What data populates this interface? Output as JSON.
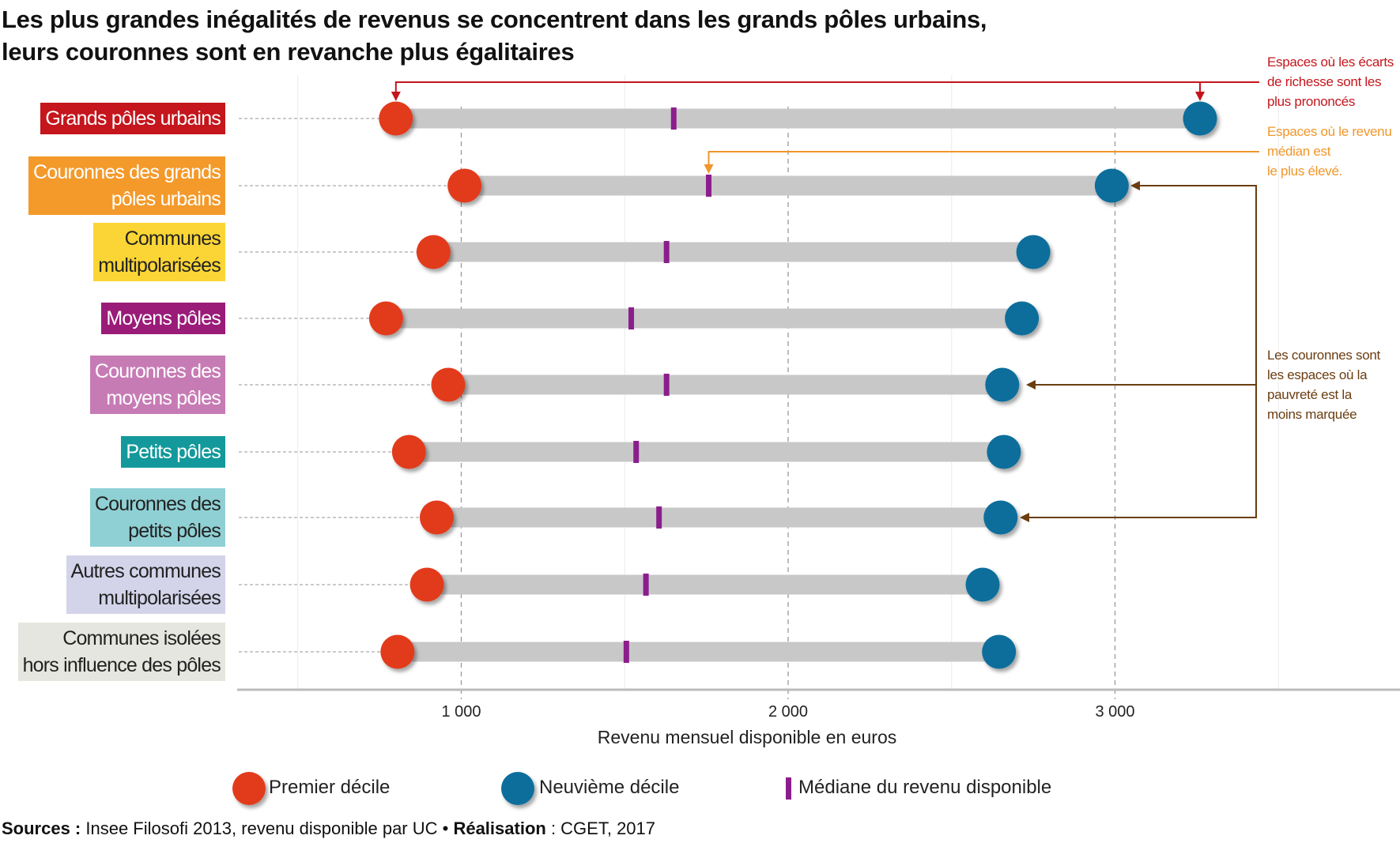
{
  "title_lines": [
    "Les plus grandes inégalités de revenus se concentrent dans les grands pôles urbains,",
    "leurs couronnes sont en revanche plus égalitaires"
  ],
  "chart_data": {
    "type": "dumbbell",
    "xlabel": "Revenu mensuel disponible en euros",
    "xlim": [
      315,
      3900
    ],
    "xticks": [
      {
        "value": 1000,
        "label": "1 000"
      },
      {
        "value": 2000,
        "label": "2 000"
      },
      {
        "value": 3000,
        "label": "3 000"
      }
    ],
    "minor_gridlines": [
      500,
      1500,
      2500,
      3500
    ],
    "grid": true,
    "legend_position": "bottom",
    "colors": {
      "d1": "#e23a1e",
      "d9": "#0b6e9c",
      "median": "#8b1e8c",
      "bar": "#c8c8c8"
    },
    "legend": {
      "d1": "Premier décile",
      "d9": "Neuvième décile",
      "median": "Médiane du revenu disponible"
    },
    "categories": [
      {
        "label": "Grands pôles urbains",
        "color": "#c4161c",
        "text": "#ffffff",
        "d1": 800,
        "median": 1650,
        "d9": 3260
      },
      {
        "label": "Couronnes des grands pôles urbains",
        "color": "#f39a2b",
        "text": "#ffffff",
        "d1": 1010,
        "median": 1757,
        "d9": 2990
      },
      {
        "label": "Communes multipolarisées",
        "color": "#fbd535",
        "text": "#222222",
        "d1": 915,
        "median": 1628,
        "d9": 2750
      },
      {
        "label": "Moyens pôles",
        "color": "#9a1b78",
        "text": "#ffffff",
        "d1": 770,
        "median": 1520,
        "d9": 2715
      },
      {
        "label": "Couronnes des moyens pôles",
        "color": "#c77bb5",
        "text": "#ffffff",
        "d1": 960,
        "median": 1628,
        "d9": 2655
      },
      {
        "label": "Petits pôles",
        "color": "#13999b",
        "text": "#ffffff",
        "d1": 840,
        "median": 1535,
        "d9": 2660
      },
      {
        "label": "Couronnes des petits pôles",
        "color": "#8fd0d4",
        "text": "#222222",
        "d1": 925,
        "median": 1605,
        "d9": 2650
      },
      {
        "label": "Autres communes multipolarisées",
        "color": "#d3d3ea",
        "text": "#222222",
        "d1": 895,
        "median": 1565,
        "d9": 2595
      },
      {
        "label": "Communes isolées hors influence des pôles",
        "color": "#e6e6e0",
        "text": "#222222",
        "d1": 805,
        "median": 1505,
        "d9": 2645
      }
    ],
    "label_lines": [
      [
        "Grands pôles urbains"
      ],
      [
        "Couronnes des grands",
        "pôles urbains"
      ],
      [
        "Communes",
        "multipolarisées"
      ],
      [
        "Moyens pôles"
      ],
      [
        "Couronnes des",
        "moyens pôles"
      ],
      [
        "Petits pôles"
      ],
      [
        "Couronnes des",
        "petits pôles"
      ],
      [
        "Autres communes",
        "multipolarisées"
      ],
      [
        "Communes isolées",
        "hors influence des pôles"
      ]
    ]
  },
  "annotations": [
    {
      "lines": [
        "Espaces où les écarts",
        "de richesse sont les",
        "plus prononcés"
      ],
      "color": "#c4161c"
    },
    {
      "lines": [
        "Espaces où le revenu",
        "médian est",
        "le plus élevé."
      ],
      "color": "#f0962a"
    },
    {
      "lines": [
        "Les couronnes sont",
        "les espaces où la",
        "pauvreté est la",
        "moins marquée"
      ],
      "color": "#6b3d10"
    }
  ],
  "sources": {
    "label": "Sources :",
    "text": " Insee Filosofi 2013, revenu disponible par UC • ",
    "label2": "Réalisation",
    "text2": " : CGET, 2017"
  }
}
